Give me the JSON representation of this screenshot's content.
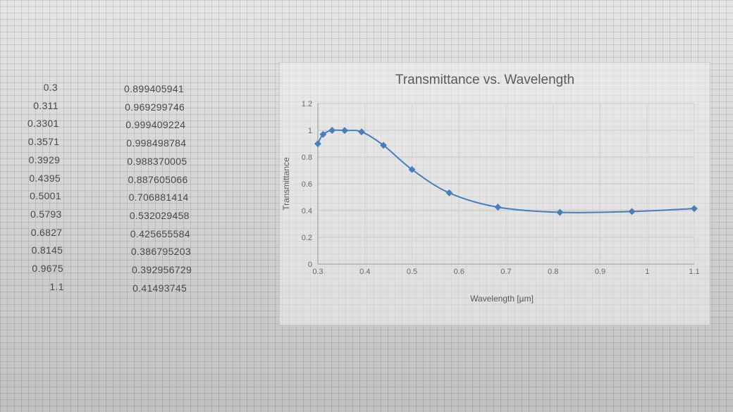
{
  "sheet": {
    "wavelength_col": [
      "0.3",
      "0.311",
      "0.3301",
      "0.3571",
      "0.3929",
      "0.4395",
      "0.5001",
      "0.5793",
      "0.6827",
      "0.8145",
      "0.9675",
      "1.1"
    ],
    "transmittance_col": [
      "0.899405941",
      "0.969299746",
      "0.999409224",
      "0.998498784",
      "0.988370005",
      "0.887605066",
      "0.706881414",
      "0.532029458",
      "0.425655584",
      "0.386795203",
      "0.392956729",
      "0.41493745"
    ]
  },
  "chart_data": {
    "type": "scatter",
    "title": "Transmittance vs. Wavelength",
    "xlabel": "Wavelength [µm]",
    "ylabel": "Transmittance",
    "x_ticks": [
      "0.3",
      "0.4",
      "0.5",
      "0.6",
      "0.7",
      "0.8",
      "0.9",
      "1",
      "1.1"
    ],
    "y_ticks": [
      "0",
      "0.2",
      "0.4",
      "0.6",
      "0.8",
      "1",
      "1.2"
    ],
    "xlim": [
      0.3,
      1.1
    ],
    "ylim": [
      0,
      1.2
    ],
    "grid": true,
    "legend": "none",
    "series": [
      {
        "x": [
          0.3,
          0.311,
          0.3301,
          0.3571,
          0.3929,
          0.4395,
          0.5001,
          0.5793,
          0.6827,
          0.8145,
          0.9675,
          1.1
        ],
        "y": [
          0.899405941,
          0.969299746,
          0.999409224,
          0.998498784,
          0.988370005,
          0.887605066,
          0.706881414,
          0.532029458,
          0.425655584,
          0.386795203,
          0.392956729,
          0.41493745
        ],
        "color": "#4a7ebb"
      }
    ]
  }
}
